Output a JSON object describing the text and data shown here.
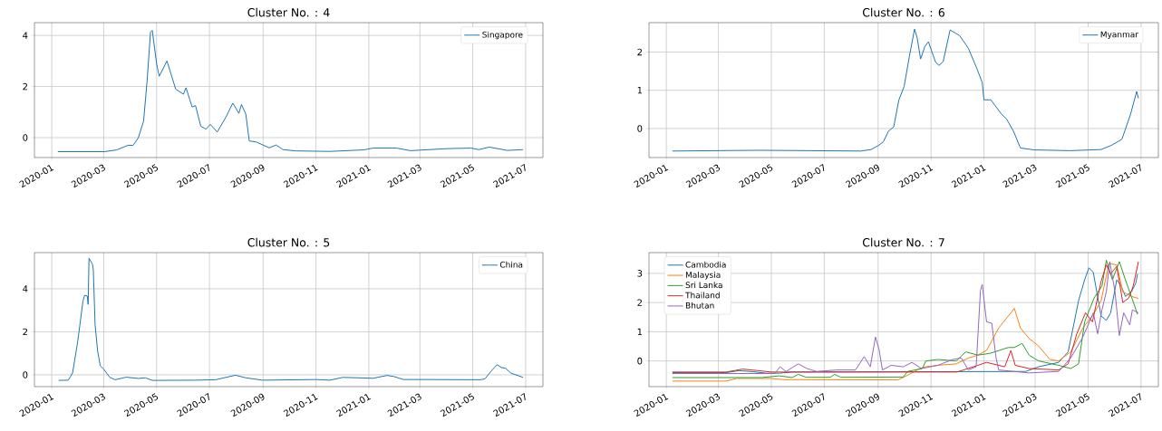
{
  "chart_data": [
    {
      "type": "line",
      "title": "Cluster No. : 4",
      "xlim": [
        "2019-12-12",
        "2021-07-21"
      ],
      "ylim": [
        -0.78,
        4.5
      ],
      "xticks": [
        "2020-01",
        "2020-03",
        "2020-05",
        "2020-07",
        "2020-09",
        "2020-11",
        "2021-01",
        "2021-03",
        "2021-05",
        "2021-07"
      ],
      "yticks": [
        0,
        2,
        4
      ],
      "grid": true,
      "legend": "top right",
      "series": [
        {
          "name": "Singapore",
          "color": "#1f77b4",
          "x": [
            "2020-01-08",
            "2020-03-02",
            "2020-03-16",
            "2020-03-29",
            "2020-04-04",
            "2020-04-10",
            "2020-04-16",
            "2020-04-20",
            "2020-04-24",
            "2020-04-26",
            "2020-05-01",
            "2020-05-04",
            "2020-05-13",
            "2020-05-23",
            "2020-06-01",
            "2020-06-04",
            "2020-06-11",
            "2020-06-15",
            "2020-06-21",
            "2020-06-27",
            "2020-07-02",
            "2020-07-10",
            "2020-07-20",
            "2020-07-28",
            "2020-08-04",
            "2020-08-07",
            "2020-08-12",
            "2020-08-16",
            "2020-08-24",
            "2020-09-08",
            "2020-09-16",
            "2020-09-24",
            "2020-10-09",
            "2020-11-17",
            "2020-12-26",
            "2021-01-06",
            "2021-02-02",
            "2021-02-18",
            "2021-04-02",
            "2021-04-29",
            "2021-05-08",
            "2021-05-20",
            "2021-06-10",
            "2021-06-28"
          ],
          "values": [
            -0.55,
            -0.55,
            -0.48,
            -0.3,
            -0.3,
            0,
            0.65,
            2.2,
            4.13,
            4.2,
            2.9,
            2.4,
            3.0,
            1.9,
            1.7,
            1.95,
            1.2,
            1.25,
            0.45,
            0.33,
            0.52,
            0.22,
            0.8,
            1.35,
            0.95,
            1.3,
            0.92,
            -0.13,
            -0.17,
            -0.4,
            -0.29,
            -0.47,
            -0.52,
            -0.54,
            -0.48,
            -0.41,
            -0.41,
            -0.51,
            -0.43,
            -0.41,
            -0.47,
            -0.37,
            -0.5,
            -0.47
          ]
        }
      ]
    },
    {
      "type": "line",
      "title": "Cluster No. : 6",
      "xlim": [
        "2019-12-12",
        "2021-07-21"
      ],
      "ylim": [
        -0.76,
        2.77
      ],
      "xticks": [
        "2020-01",
        "2020-03",
        "2020-05",
        "2020-07",
        "2020-09",
        "2020-11",
        "2021-01",
        "2021-03",
        "2021-05",
        "2021-07"
      ],
      "yticks": [
        0,
        1,
        2
      ],
      "grid": true,
      "legend": "top right",
      "series": [
        {
          "name": "Myanmar",
          "color": "#1f77b4",
          "x": [
            "2020-01-08",
            "2020-04-17",
            "2020-08-12",
            "2020-08-24",
            "2020-09-01",
            "2020-09-07",
            "2020-09-13",
            "2020-09-19",
            "2020-09-25",
            "2020-10-01",
            "2020-10-07",
            "2020-10-13",
            "2020-10-16",
            "2020-10-20",
            "2020-10-25",
            "2020-10-29",
            "2020-11-06",
            "2020-11-10",
            "2020-11-15",
            "2020-11-23",
            "2020-12-04",
            "2020-12-14",
            "2020-12-24",
            "2020-12-30",
            "2021-01-01",
            "2021-01-09",
            "2021-01-21",
            "2021-01-27",
            "2021-02-04",
            "2021-02-12",
            "2021-02-28",
            "2021-04-10",
            "2021-05-16",
            "2021-05-28",
            "2021-06-09",
            "2021-06-19",
            "2021-06-26",
            "2021-06-28"
          ],
          "values": [
            -0.59,
            -0.57,
            -0.59,
            -0.55,
            -0.45,
            -0.35,
            -0.07,
            0.04,
            0.75,
            1.1,
            1.88,
            2.6,
            2.38,
            1.82,
            2.15,
            2.27,
            1.75,
            1.65,
            1.75,
            2.58,
            2.43,
            2.1,
            1.56,
            1.2,
            0.75,
            0.75,
            0.38,
            0.25,
            -0.07,
            -0.51,
            -0.56,
            -0.58,
            -0.55,
            -0.44,
            -0.28,
            0.38,
            0.97,
            0.79
          ]
        }
      ]
    },
    {
      "type": "line",
      "title": "Cluster No. : 5",
      "xlim": [
        "2019-12-12",
        "2021-07-21"
      ],
      "ylim": [
        -0.55,
        5.68
      ],
      "xticks": [
        "2020-01",
        "2020-03",
        "2020-05",
        "2020-07",
        "2020-09",
        "2020-11",
        "2021-01",
        "2021-03",
        "2021-05",
        "2021-07"
      ],
      "yticks": [
        0,
        2,
        4
      ],
      "grid": true,
      "legend": "top right",
      "series": [
        {
          "name": "China",
          "color": "#1f77b4",
          "x": [
            "2020-01-09",
            "2020-01-20",
            "2020-01-25",
            "2020-01-31",
            "2020-02-06",
            "2020-02-08",
            "2020-02-11",
            "2020-02-12",
            "2020-02-13",
            "2020-02-17",
            "2020-02-18",
            "2020-02-20",
            "2020-02-23",
            "2020-02-26",
            "2020-03-01",
            "2020-03-08",
            "2020-03-14",
            "2020-03-27",
            "2020-04-10",
            "2020-04-18",
            "2020-04-26",
            "2020-06-15",
            "2020-07-08",
            "2020-07-31",
            "2020-08-12",
            "2020-08-31",
            "2020-11-01",
            "2020-11-17",
            "2020-12-02",
            "2021-01-06",
            "2021-01-22",
            "2021-01-30",
            "2021-02-10",
            "2021-03-13",
            "2021-05-10",
            "2021-05-15",
            "2021-05-22",
            "2021-05-29",
            "2021-06-03",
            "2021-06-08",
            "2021-06-14",
            "2021-06-28"
          ],
          "values": [
            -0.26,
            -0.25,
            0.08,
            1.56,
            3.42,
            3.7,
            3.66,
            3.27,
            5.42,
            5.14,
            4.86,
            2.33,
            1.09,
            0.42,
            0.26,
            -0.12,
            -0.23,
            -0.11,
            -0.17,
            -0.14,
            -0.26,
            -0.25,
            -0.23,
            -0.02,
            -0.14,
            -0.25,
            -0.22,
            -0.25,
            -0.12,
            -0.16,
            -0.03,
            -0.08,
            -0.22,
            -0.22,
            -0.23,
            -0.19,
            0.16,
            0.47,
            0.34,
            0.3,
            0.08,
            -0.12
          ]
        }
      ]
    },
    {
      "type": "line",
      "title": "Cluster No. : 7",
      "xlim": [
        "2019-12-12",
        "2021-07-21"
      ],
      "ylim": [
        -0.88,
        3.71
      ],
      "xticks": [
        "2020-01",
        "2020-03",
        "2020-05",
        "2020-07",
        "2020-09",
        "2020-11",
        "2021-01",
        "2021-03",
        "2021-05",
        "2021-07"
      ],
      "yticks": [
        0,
        1,
        2,
        3
      ],
      "grid": true,
      "legend": "top left",
      "series": [
        {
          "name": "Cambodia",
          "color": "#1f77b4",
          "x": [
            "2020-01-08",
            "2020-03-10",
            "2020-03-25",
            "2020-04-10",
            "2020-04-25",
            "2020-05-10",
            "2020-05-25",
            "2021-02-18",
            "2021-03-05",
            "2021-03-28",
            "2021-04-08",
            "2021-04-13",
            "2021-04-20",
            "2021-04-27",
            "2021-05-02",
            "2021-05-07",
            "2021-05-11",
            "2021-05-16",
            "2021-05-22",
            "2021-05-27",
            "2021-06-03",
            "2021-06-08",
            "2021-06-13",
            "2021-06-20",
            "2021-06-25",
            "2021-06-27"
          ],
          "values": [
            -0.4,
            -0.4,
            -0.33,
            -0.37,
            -0.42,
            -0.42,
            -0.38,
            -0.36,
            -0.2,
            -0.05,
            0.31,
            1.03,
            2.06,
            2.78,
            3.19,
            3.03,
            2.37,
            1.54,
            1.39,
            1.65,
            2.78,
            2.57,
            2.21,
            2.37,
            2.67,
            2.98
          ]
        },
        {
          "name": "Malaysia",
          "color": "#ff7f0e",
          "x": [
            "2020-01-08",
            "2020-03-10",
            "2020-03-22",
            "2020-05-01",
            "2020-05-15",
            "2020-09-24",
            "2020-10-07",
            "2020-10-19",
            "2020-10-26",
            "2020-11-09",
            "2020-11-30",
            "2020-12-14",
            "2020-12-25",
            "2021-01-04",
            "2021-01-18",
            "2021-01-29",
            "2021-02-05",
            "2021-02-12",
            "2021-02-22",
            "2021-03-05",
            "2021-03-18",
            "2021-03-28",
            "2021-04-11",
            "2021-04-25",
            "2021-05-06",
            "2021-05-16",
            "2021-05-25",
            "2021-06-03",
            "2021-06-10",
            "2021-06-20",
            "2021-06-28"
          ],
          "values": [
            -0.69,
            -0.69,
            -0.6,
            -0.6,
            -0.64,
            -0.65,
            -0.46,
            -0.26,
            -0.2,
            -0.15,
            -0.1,
            0.1,
            0.2,
            0.36,
            1.13,
            1.54,
            1.8,
            1.13,
            0.77,
            0.51,
            0.05,
            0,
            0.31,
            1.13,
            1.54,
            2.06,
            3.34,
            3.29,
            2.37,
            2.21,
            2.14
          ]
        },
        {
          "name": "Sri Lanka",
          "color": "#2ca02c",
          "x": [
            "2020-01-08",
            "2020-04-20",
            "2020-05-10",
            "2020-05-25",
            "2020-06-01",
            "2020-06-10",
            "2020-07-08",
            "2020-07-13",
            "2020-07-20",
            "2020-09-30",
            "2020-10-05",
            "2020-10-22",
            "2020-10-26",
            "2020-11-09",
            "2020-11-30",
            "2020-12-11",
            "2020-12-25",
            "2021-01-08",
            "2021-01-29",
            "2021-02-05",
            "2021-02-14",
            "2021-02-22",
            "2021-03-05",
            "2021-03-28",
            "2021-04-11",
            "2021-04-20",
            "2021-04-27",
            "2021-05-08",
            "2021-05-17",
            "2021-05-22",
            "2021-05-29",
            "2021-06-06",
            "2021-06-13",
            "2021-06-21",
            "2021-06-27"
          ],
          "values": [
            -0.57,
            -0.57,
            -0.51,
            -0.57,
            -0.46,
            -0.56,
            -0.56,
            -0.46,
            -0.56,
            -0.55,
            -0.36,
            -0.26,
            0,
            0.05,
            0,
            0.31,
            0.2,
            0.26,
            0.46,
            0.46,
            0.6,
            0.2,
            0,
            -0.15,
            -0.26,
            -0.1,
            1.34,
            2.16,
            2.57,
            3.45,
            2.78,
            3.4,
            2.78,
            2.11,
            1.59
          ]
        },
        {
          "name": "Thailand",
          "color": "#d62728",
          "x": [
            "2020-01-08",
            "2020-03-10",
            "2020-03-29",
            "2020-04-15",
            "2020-05-01",
            "2020-12-01",
            "2020-12-25",
            "2021-01-04",
            "2021-01-11",
            "2021-01-25",
            "2021-02-01",
            "2021-02-06",
            "2021-02-22",
            "2021-03-28",
            "2021-04-08",
            "2021-04-18",
            "2021-04-28",
            "2021-05-06",
            "2021-05-16",
            "2021-05-22",
            "2021-05-27",
            "2021-06-03",
            "2021-06-10",
            "2021-06-17",
            "2021-06-22",
            "2021-06-28"
          ],
          "values": [
            -0.38,
            -0.38,
            -0.28,
            -0.33,
            -0.38,
            -0.38,
            -0.15,
            -0.05,
            -0.1,
            -0.2,
            0.36,
            -0.15,
            -0.26,
            -0.31,
            -0.1,
            0.93,
            1.65,
            1.34,
            2.73,
            3.29,
            2.98,
            3.24,
            2.0,
            2.16,
            2.57,
            3.4
          ]
        },
        {
          "name": "Bhutan",
          "color": "#9467bd",
          "x": [
            "2020-01-08",
            "2020-05-05",
            "2020-05-11",
            "2020-05-18",
            "2020-06-01",
            "2020-06-11",
            "2020-06-22",
            "2020-07-15",
            "2020-08-06",
            "2020-08-16",
            "2020-08-23",
            "2020-08-29",
            "2020-09-02",
            "2020-09-06",
            "2020-09-16",
            "2020-09-30",
            "2020-10-10",
            "2020-10-21",
            "2020-11-09",
            "2020-11-26",
            "2020-12-06",
            "2020-12-14",
            "2020-12-23",
            "2020-12-28",
            "2020-12-30",
            "2021-01-04",
            "2021-01-10",
            "2021-01-15",
            "2021-01-18",
            "2021-02-22",
            "2021-03-28",
            "2021-04-11",
            "2021-04-25",
            "2021-05-07",
            "2021-05-12",
            "2021-05-17",
            "2021-05-22",
            "2021-05-26",
            "2021-06-01",
            "2021-06-06",
            "2021-06-11",
            "2021-06-18",
            "2021-06-21",
            "2021-06-28"
          ],
          "values": [
            -0.43,
            -0.43,
            -0.2,
            -0.36,
            -0.1,
            -0.26,
            -0.36,
            -0.31,
            -0.31,
            0.15,
            -0.2,
            0.82,
            0.41,
            -0.31,
            -0.15,
            -0.2,
            -0.05,
            -0.26,
            -0.15,
            0.05,
            0.1,
            -0.31,
            -0.2,
            2.42,
            2.62,
            1.34,
            1.29,
            0.1,
            -0.31,
            -0.41,
            -0.36,
            0.1,
            0.82,
            1.65,
            0.93,
            1.75,
            2.37,
            3.4,
            2.37,
            0.87,
            1.65,
            1.23,
            1.75,
            1.65
          ]
        }
      ]
    }
  ]
}
